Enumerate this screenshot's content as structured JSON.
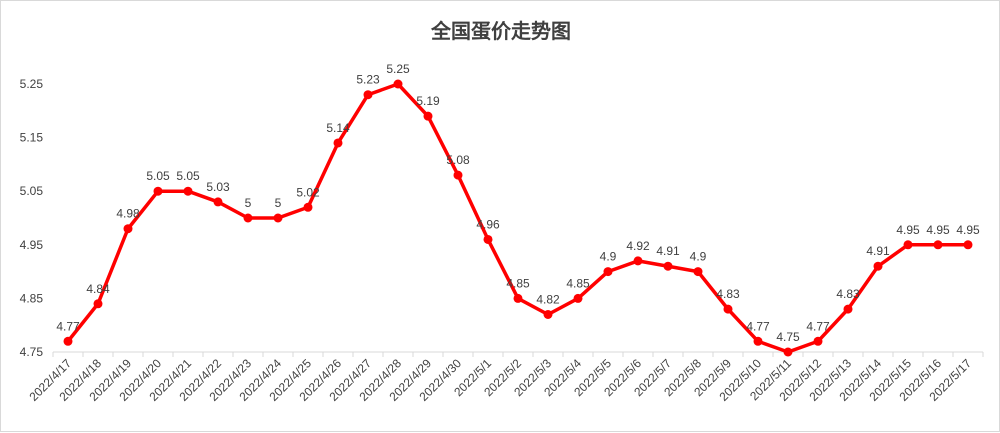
{
  "chart_data": {
    "type": "line",
    "title": "全国蛋价走势图",
    "xlabel": "",
    "ylabel": "",
    "ylim": [
      4.75,
      5.25
    ],
    "yticks": [
      4.75,
      4.85,
      4.95,
      5.05,
      5.15,
      5.25
    ],
    "ytick_labels": [
      "4.75",
      "4.85",
      "4.95",
      "5.05",
      "5.15",
      "5.25"
    ],
    "grid": false,
    "legend": "none",
    "line_color": "#ff0000",
    "categories": [
      "2022/4/17",
      "2022/4/18",
      "2022/4/19",
      "2022/4/20",
      "2022/4/21",
      "2022/4/22",
      "2022/4/23",
      "2022/4/24",
      "2022/4/25",
      "2022/4/26",
      "2022/4/27",
      "2022/4/28",
      "2022/4/29",
      "2022/4/30",
      "2022/5/1",
      "2022/5/2",
      "2022/5/3",
      "2022/5/4",
      "2022/5/5",
      "2022/5/6",
      "2022/5/7",
      "2022/5/8",
      "2022/5/9",
      "2022/5/10",
      "2022/5/11",
      "2022/5/12",
      "2022/5/13",
      "2022/5/14",
      "2022/5/15",
      "2022/5/16",
      "2022/5/17"
    ],
    "values": [
      4.77,
      4.84,
      4.98,
      5.05,
      5.05,
      5.03,
      5,
      5,
      5.02,
      5.14,
      5.23,
      5.25,
      5.19,
      5.08,
      4.96,
      4.85,
      4.82,
      4.85,
      4.9,
      4.92,
      4.91,
      4.9,
      4.83,
      4.77,
      4.75,
      4.77,
      4.83,
      4.91,
      4.95,
      4.95,
      4.95
    ],
    "value_labels": [
      "4.77",
      "4.84",
      "4.98",
      "5.05",
      "5.05",
      "5.03",
      "5",
      "5",
      "5.02",
      "5.14",
      "5.23",
      "5.25",
      "5.19",
      "5.08",
      "4.96",
      "4.85",
      "4.82",
      "4.85",
      "4.9",
      "4.92",
      "4.91",
      "4.9",
      "4.83",
      "4.77",
      "4.75",
      "4.77",
      "4.83",
      "4.91",
      "4.95",
      "4.95",
      "4.95"
    ]
  }
}
